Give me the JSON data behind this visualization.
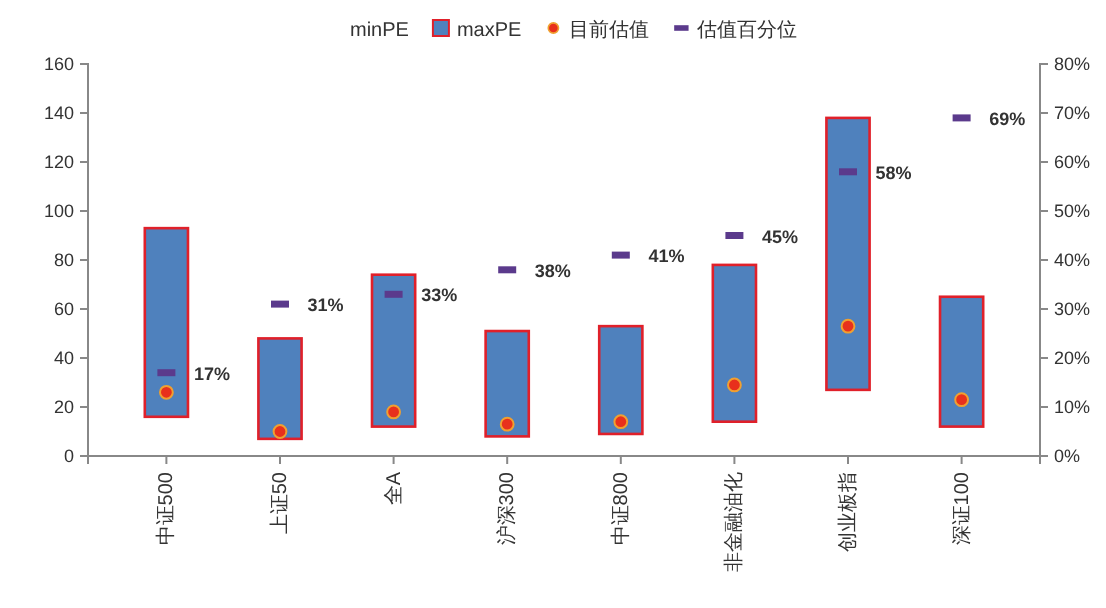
{
  "chart_data": {
    "type": "bar",
    "categories": [
      "中证500",
      "上证50",
      "全A",
      "沪深300",
      "中证800",
      "非金融油化",
      "创业板指",
      "深证100"
    ],
    "series": [
      {
        "name": "maxPE",
        "color": "#4f81bd",
        "base": [
          16,
          7,
          12,
          8,
          9,
          14,
          27,
          12
        ],
        "values": [
          77,
          41,
          62,
          43,
          44,
          64,
          111,
          53
        ]
      },
      {
        "name": "目前估值",
        "type": "scatter",
        "marker": "circle",
        "color": "#e8301c",
        "values": [
          26,
          10,
          18,
          13,
          14,
          29,
          53,
          23
        ]
      },
      {
        "name": "估值百分位",
        "type": "scatter",
        "axis": "y2",
        "color": "#5b3a8c",
        "values": [
          17,
          31,
          33,
          38,
          41,
          45,
          58,
          69
        ],
        "value_labels": [
          "17%",
          "31%",
          "33%",
          "38%",
          "41%",
          "45%",
          "58%",
          "69%"
        ]
      }
    ],
    "annotations": [
      "minPE"
    ],
    "ylim": [
      0,
      160
    ],
    "yticks": [
      0,
      20,
      40,
      60,
      80,
      100,
      120,
      140,
      160
    ],
    "y2lim": [
      0,
      80
    ],
    "y2ticks": [
      {
        "value": 0,
        "label": "0%"
      },
      {
        "value": 10,
        "label": "10%"
      },
      {
        "value": 20,
        "label": "20%"
      },
      {
        "value": 30,
        "label": "30%"
      },
      {
        "value": 40,
        "label": "40%"
      },
      {
        "value": 50,
        "label": "50%"
      },
      {
        "value": 60,
        "label": "60%"
      },
      {
        "value": 70,
        "label": "70%"
      },
      {
        "value": 80,
        "label": "80%"
      }
    ],
    "legend": "top"
  }
}
